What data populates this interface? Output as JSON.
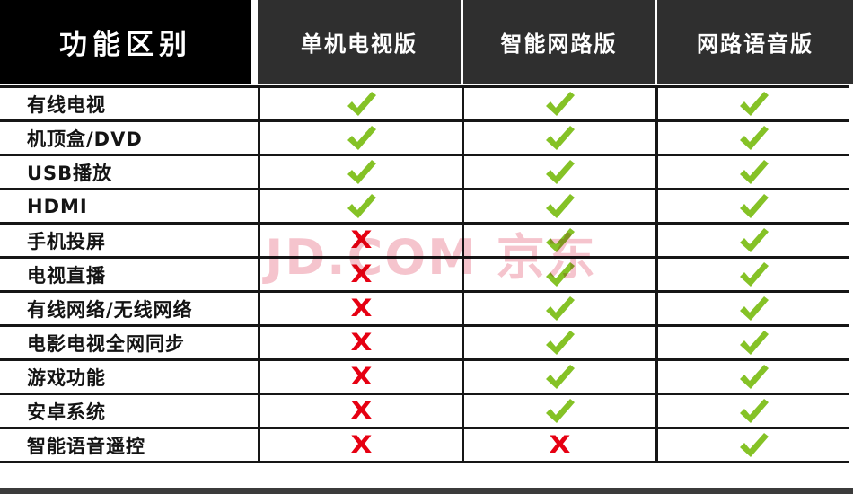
{
  "table": {
    "corner_label": "功能区别",
    "columns": [
      "单机电视版",
      "智能网路版",
      "网路语音版"
    ],
    "rows": [
      {
        "label": "有线电视",
        "values": [
          "check",
          "check",
          "check"
        ]
      },
      {
        "label": "机顶盒/DVD",
        "values": [
          "check",
          "check",
          "check"
        ]
      },
      {
        "label": "USB播放",
        "values": [
          "check",
          "check",
          "check"
        ]
      },
      {
        "label": "HDMI",
        "values": [
          "check",
          "check",
          "check"
        ]
      },
      {
        "label": "手机投屏",
        "values": [
          "cross",
          "check",
          "check"
        ]
      },
      {
        "label": "电视直播",
        "values": [
          "cross",
          "check",
          "check"
        ]
      },
      {
        "label": "有线网络/无线网络",
        "values": [
          "cross",
          "check",
          "check"
        ]
      },
      {
        "label": "电影电视全网同步",
        "values": [
          "cross",
          "check",
          "check"
        ]
      },
      {
        "label": "游戏功能",
        "values": [
          "cross",
          "check",
          "check"
        ]
      },
      {
        "label": "安卓系统",
        "values": [
          "cross",
          "check",
          "check"
        ]
      },
      {
        "label": "智能语音遥控",
        "values": [
          "cross",
          "cross",
          "check"
        ]
      }
    ]
  },
  "marks": {
    "check_name": "green-check-icon",
    "cross_name": "red-cross-icon",
    "cross_glyph": "X"
  },
  "watermark": {
    "text": "JD.COM 京东"
  },
  "colors": {
    "check_green": "#85c226",
    "cross_red": "#e60012",
    "corner_bg": "#000000",
    "header_bg": "#2f2f2f",
    "grid_line": "#161616",
    "watermark_pink": "#e2506a",
    "footer_bar": "#3b3b3b"
  }
}
